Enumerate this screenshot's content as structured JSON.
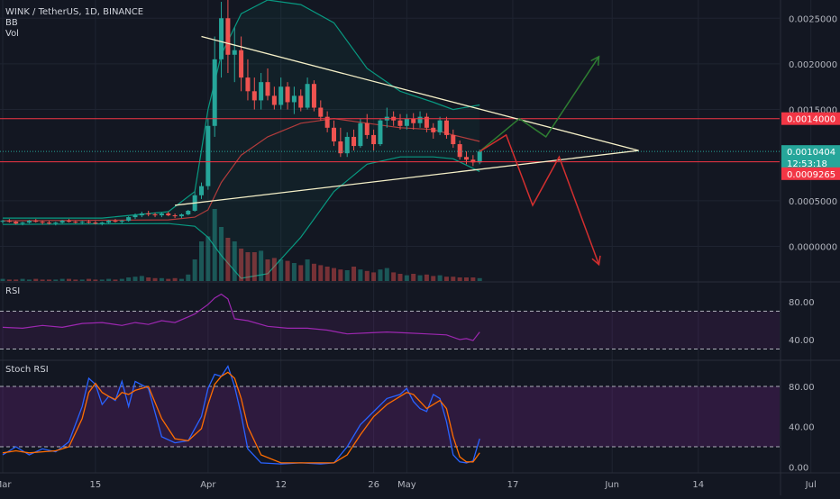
{
  "header": {
    "symbol_line": "WINK / TetherUS, 1D, BINANCE",
    "indicators": [
      "BB",
      "Vol"
    ]
  },
  "panes": {
    "rsi_label": "RSI",
    "stoch_label": "Stoch RSI"
  },
  "price_axis": {
    "ticks": [
      "0.0025000",
      "0.0020000",
      "0.0015000",
      "0.0005000",
      "0.0000000"
    ],
    "tick_values": [
      0.0025,
      0.002,
      0.0015,
      0.0005,
      0.0
    ],
    "tag_resistance": "0.0014000",
    "tag_current": "0.0010404",
    "tag_countdown": "12:53:18",
    "tag_support": "0.0009265"
  },
  "rsi_axis": {
    "ticks": [
      "80.00",
      "40.00"
    ],
    "tick_values": [
      80,
      40
    ]
  },
  "stoch_axis": {
    "ticks": [
      "80.00",
      "40.00",
      "0.00"
    ],
    "tick_values": [
      80,
      40,
      0
    ]
  },
  "time_axis": {
    "labels": [
      "Mar",
      "15",
      "Apr",
      "12",
      "26",
      "May",
      "17",
      "Jun",
      "14",
      "Jul"
    ],
    "label_day_index": [
      0,
      14,
      31,
      42,
      56,
      61,
      77,
      92,
      105,
      122
    ]
  },
  "colors": {
    "background": "#131722",
    "up": "#26a69a",
    "down": "#ef5350",
    "bb_band": "#089981",
    "bb_mid": "#b23c3c",
    "rsi_line": "#9c27b0",
    "stoch_k": "#2962ff",
    "stoch_d": "#ff6d00",
    "trendline": "#f5f0c8",
    "resistance": "#f23645",
    "arrow_up": "#2e7d32",
    "arrow_down": "#d32f2f"
  },
  "chart_data": {
    "type": "candlestick",
    "title": "WINK / TetherUS, 1D, BINANCE",
    "first_day": "Mar 1",
    "price_ylim": [
      -0.00038,
      0.0027
    ],
    "ohlc": [
      [
        0.00027,
        0.00029,
        0.00025,
        0.00028
      ],
      [
        0.00028,
        0.0003,
        0.00026,
        0.00027
      ],
      [
        0.00027,
        0.00028,
        0.00024,
        0.00025
      ],
      [
        0.00025,
        0.00027,
        0.00023,
        0.00026
      ],
      [
        0.00026,
        0.00029,
        0.00025,
        0.00028
      ],
      [
        0.00028,
        0.0003,
        0.00026,
        0.00027
      ],
      [
        0.00027,
        0.00028,
        0.00024,
        0.00026
      ],
      [
        0.00026,
        0.00028,
        0.00024,
        0.00025
      ],
      [
        0.00025,
        0.00027,
        0.00023,
        0.00026
      ],
      [
        0.00026,
        0.00029,
        0.00025,
        0.00028
      ],
      [
        0.00028,
        0.0003,
        0.00026,
        0.00027
      ],
      [
        0.00027,
        0.00028,
        0.00025,
        0.00026
      ],
      [
        0.00026,
        0.00028,
        0.00024,
        0.00027
      ],
      [
        0.00027,
        0.00029,
        0.00025,
        0.00026
      ],
      [
        0.00026,
        0.00028,
        0.00024,
        0.00025
      ],
      [
        0.00025,
        0.00027,
        0.00023,
        0.00026
      ],
      [
        0.00026,
        0.00029,
        0.00025,
        0.00028
      ],
      [
        0.00028,
        0.0003,
        0.00026,
        0.00027
      ],
      [
        0.00027,
        0.00029,
        0.00025,
        0.00028
      ],
      [
        0.00028,
        0.00033,
        0.00027,
        0.00032
      ],
      [
        0.00032,
        0.00036,
        0.0003,
        0.00034
      ],
      [
        0.00034,
        0.00038,
        0.00032,
        0.00036
      ],
      [
        0.00036,
        0.00039,
        0.00033,
        0.00035
      ],
      [
        0.00035,
        0.00037,
        0.00032,
        0.00034
      ],
      [
        0.00034,
        0.00037,
        0.00032,
        0.00036
      ],
      [
        0.00036,
        0.00038,
        0.00033,
        0.00034
      ],
      [
        0.00034,
        0.00036,
        0.00031,
        0.00033
      ],
      [
        0.00033,
        0.00036,
        0.00031,
        0.00035
      ],
      [
        0.00035,
        0.0004,
        0.00034,
        0.00039
      ],
      [
        0.00039,
        0.0006,
        0.00038,
        0.00056
      ],
      [
        0.00056,
        0.0007,
        0.00052,
        0.00066
      ],
      [
        0.00066,
        0.0014,
        0.00062,
        0.00132
      ],
      [
        0.00132,
        0.0023,
        0.0012,
        0.00205
      ],
      [
        0.00205,
        0.00268,
        0.00185,
        0.0025
      ],
      [
        0.0025,
        0.0027,
        0.0019,
        0.0021
      ],
      [
        0.0021,
        0.0024,
        0.0018,
        0.00215
      ],
      [
        0.00215,
        0.0023,
        0.0017,
        0.00185
      ],
      [
        0.00185,
        0.00205,
        0.0016,
        0.0017
      ],
      [
        0.0017,
        0.00185,
        0.0015,
        0.0016
      ],
      [
        0.0016,
        0.0019,
        0.0015,
        0.0018
      ],
      [
        0.0018,
        0.00195,
        0.0016,
        0.00165
      ],
      [
        0.00165,
        0.00175,
        0.0015,
        0.00155
      ],
      [
        0.00155,
        0.00185,
        0.0015,
        0.00175
      ],
      [
        0.00175,
        0.0018,
        0.0015,
        0.00158
      ],
      [
        0.00158,
        0.00175,
        0.00145,
        0.00165
      ],
      [
        0.00165,
        0.00172,
        0.00148,
        0.00152
      ],
      [
        0.00152,
        0.00185,
        0.0015,
        0.00178
      ],
      [
        0.00178,
        0.00182,
        0.00148,
        0.00152
      ],
      [
        0.00152,
        0.0016,
        0.00138,
        0.00142
      ],
      [
        0.00142,
        0.00148,
        0.00125,
        0.0013
      ],
      [
        0.0013,
        0.00138,
        0.0011,
        0.00115
      ],
      [
        0.00115,
        0.0013,
        0.00098,
        0.00102
      ],
      [
        0.00102,
        0.00125,
        0.00098,
        0.0012
      ],
      [
        0.0012,
        0.00128,
        0.00105,
        0.0011
      ],
      [
        0.0011,
        0.0014,
        0.00108,
        0.00135
      ],
      [
        0.00135,
        0.00145,
        0.00118,
        0.00122
      ],
      [
        0.00122,
        0.00128,
        0.00105,
        0.00112
      ],
      [
        0.00112,
        0.0014,
        0.0011,
        0.00138
      ],
      [
        0.00138,
        0.00152,
        0.0013,
        0.00142
      ],
      [
        0.00142,
        0.00148,
        0.00132,
        0.00138
      ],
      [
        0.00138,
        0.00145,
        0.00128,
        0.00132
      ],
      [
        0.00132,
        0.00145,
        0.00128,
        0.0014
      ],
      [
        0.0014,
        0.00146,
        0.00128,
        0.00135
      ],
      [
        0.00135,
        0.00148,
        0.0013,
        0.00142
      ],
      [
        0.00142,
        0.00146,
        0.00125,
        0.0013
      ],
      [
        0.0013,
        0.00135,
        0.00118,
        0.00125
      ],
      [
        0.00125,
        0.00142,
        0.00122,
        0.00138
      ],
      [
        0.00138,
        0.00142,
        0.00118,
        0.00122
      ],
      [
        0.00122,
        0.00128,
        0.00108,
        0.00112
      ],
      [
        0.00112,
        0.00116,
        0.00095,
        0.00098
      ],
      [
        0.00098,
        0.00104,
        0.0009,
        0.00095
      ],
      [
        0.00095,
        0.001,
        0.00088,
        0.00092
      ],
      [
        0.00092,
        0.00106,
        0.0009,
        0.00104
      ]
    ],
    "volume": [
      3,
      2,
      2,
      3,
      2,
      3,
      2,
      2,
      2,
      3,
      3,
      2,
      2,
      3,
      2,
      2,
      3,
      2,
      3,
      5,
      6,
      7,
      5,
      4,
      4,
      3,
      4,
      3,
      9,
      30,
      55,
      62,
      100,
      75,
      60,
      55,
      45,
      40,
      40,
      42,
      30,
      32,
      30,
      28,
      25,
      22,
      30,
      24,
      22,
      20,
      18,
      16,
      15,
      20,
      16,
      14,
      12,
      16,
      18,
      12,
      10,
      8,
      10,
      8,
      9,
      7,
      8,
      6,
      6,
      5,
      5,
      5,
      4
    ],
    "bollinger": {
      "upper": [
        [
          0,
          0.00031
        ],
        [
          15,
          0.00031
        ],
        [
          25,
          0.00038
        ],
        [
          29,
          0.0006
        ],
        [
          31,
          0.0015
        ],
        [
          33,
          0.0021
        ],
        [
          36,
          0.00255
        ],
        [
          40,
          0.0027
        ],
        [
          45,
          0.00265
        ],
        [
          50,
          0.00245
        ],
        [
          55,
          0.00195
        ],
        [
          60,
          0.0017
        ],
        [
          65,
          0.00158
        ],
        [
          68,
          0.0015
        ],
        [
          72,
          0.00155
        ]
      ],
      "middle": [
        [
          0,
          0.00028
        ],
        [
          25,
          0.00029
        ],
        [
          29,
          0.00032
        ],
        [
          31,
          0.0004
        ],
        [
          33,
          0.0007
        ],
        [
          36,
          0.001
        ],
        [
          40,
          0.0012
        ],
        [
          45,
          0.00135
        ],
        [
          50,
          0.0014
        ],
        [
          55,
          0.00135
        ],
        [
          60,
          0.0013
        ],
        [
          65,
          0.00128
        ],
        [
          68,
          0.00122
        ],
        [
          72,
          0.00115
        ]
      ],
      "lower": [
        [
          0,
          0.00024
        ],
        [
          25,
          0.00025
        ],
        [
          29,
          0.00022
        ],
        [
          31,
          0.0001
        ],
        [
          33,
          -0.0001
        ],
        [
          36,
          -0.00035
        ],
        [
          40,
          -0.0003
        ],
        [
          45,
          0.0001
        ],
        [
          50,
          0.0006
        ],
        [
          55,
          0.0009
        ],
        [
          60,
          0.00098
        ],
        [
          65,
          0.00098
        ],
        [
          68,
          0.00096
        ],
        [
          72,
          0.00082
        ]
      ]
    },
    "rsi": {
      "ylim": [
        20,
        100
      ],
      "bands": [
        70,
        30
      ],
      "points": [
        [
          0,
          53
        ],
        [
          3,
          52
        ],
        [
          6,
          55
        ],
        [
          9,
          53
        ],
        [
          12,
          57
        ],
        [
          15,
          58
        ],
        [
          18,
          55
        ],
        [
          20,
          58
        ],
        [
          22,
          56
        ],
        [
          24,
          60
        ],
        [
          26,
          58
        ],
        [
          28,
          64
        ],
        [
          29,
          67
        ],
        [
          31,
          77
        ],
        [
          32,
          84
        ],
        [
          33,
          88
        ],
        [
          34,
          83
        ],
        [
          35,
          62
        ],
        [
          37,
          60
        ],
        [
          40,
          54
        ],
        [
          43,
          52
        ],
        [
          46,
          52
        ],
        [
          49,
          50
        ],
        [
          52,
          46
        ],
        [
          55,
          47
        ],
        [
          58,
          48
        ],
        [
          61,
          47
        ],
        [
          64,
          46
        ],
        [
          67,
          45
        ],
        [
          69,
          40
        ],
        [
          70,
          41
        ],
        [
          71,
          39
        ],
        [
          72,
          48
        ]
      ]
    },
    "stoch_rsi": {
      "ylim": [
        -5,
        105
      ],
      "bands": [
        80,
        20
      ],
      "k": [
        [
          0,
          12
        ],
        [
          2,
          20
        ],
        [
          4,
          12
        ],
        [
          6,
          18
        ],
        [
          8,
          15
        ],
        [
          10,
          25
        ],
        [
          12,
          60
        ],
        [
          13,
          88
        ],
        [
          14,
          82
        ],
        [
          15,
          62
        ],
        [
          16,
          70
        ],
        [
          17,
          66
        ],
        [
          18,
          85
        ],
        [
          19,
          60
        ],
        [
          20,
          85
        ],
        [
          22,
          78
        ],
        [
          24,
          30
        ],
        [
          26,
          24
        ],
        [
          28,
          26
        ],
        [
          30,
          50
        ],
        [
          31,
          78
        ],
        [
          32,
          92
        ],
        [
          33,
          90
        ],
        [
          34,
          100
        ],
        [
          35,
          80
        ],
        [
          36,
          52
        ],
        [
          37,
          18
        ],
        [
          39,
          4
        ],
        [
          42,
          3
        ],
        [
          45,
          4
        ],
        [
          48,
          3
        ],
        [
          50,
          4
        ],
        [
          52,
          20
        ],
        [
          54,
          42
        ],
        [
          56,
          55
        ],
        [
          58,
          68
        ],
        [
          60,
          72
        ],
        [
          61,
          78
        ],
        [
          62,
          65
        ],
        [
          63,
          58
        ],
        [
          64,
          55
        ],
        [
          65,
          72
        ],
        [
          66,
          68
        ],
        [
          67,
          45
        ],
        [
          68,
          12
        ],
        [
          69,
          5
        ],
        [
          70,
          4
        ],
        [
          71,
          6
        ],
        [
          72,
          28
        ]
      ],
      "d": [
        [
          0,
          14
        ],
        [
          2,
          16
        ],
        [
          4,
          14
        ],
        [
          6,
          15
        ],
        [
          8,
          16
        ],
        [
          10,
          20
        ],
        [
          12,
          48
        ],
        [
          13,
          74
        ],
        [
          14,
          83
        ],
        [
          15,
          74
        ],
        [
          16,
          70
        ],
        [
          17,
          67
        ],
        [
          18,
          74
        ],
        [
          19,
          72
        ],
        [
          20,
          76
        ],
        [
          22,
          80
        ],
        [
          24,
          48
        ],
        [
          26,
          28
        ],
        [
          28,
          26
        ],
        [
          30,
          38
        ],
        [
          31,
          62
        ],
        [
          32,
          82
        ],
        [
          33,
          90
        ],
        [
          34,
          94
        ],
        [
          35,
          88
        ],
        [
          36,
          68
        ],
        [
          37,
          40
        ],
        [
          39,
          12
        ],
        [
          42,
          4
        ],
        [
          45,
          4
        ],
        [
          48,
          4
        ],
        [
          50,
          4
        ],
        [
          52,
          12
        ],
        [
          54,
          32
        ],
        [
          56,
          50
        ],
        [
          58,
          62
        ],
        [
          60,
          70
        ],
        [
          61,
          74
        ],
        [
          62,
          72
        ],
        [
          63,
          65
        ],
        [
          64,
          58
        ],
        [
          65,
          62
        ],
        [
          66,
          66
        ],
        [
          67,
          58
        ],
        [
          68,
          30
        ],
        [
          69,
          10
        ],
        [
          70,
          5
        ],
        [
          71,
          5
        ],
        [
          72,
          14
        ]
      ]
    },
    "drawings": {
      "resistance_level": 0.0014,
      "support_level": 0.0009265,
      "upper_trendline": [
        [
          30,
          0.0023
        ],
        [
          96,
          0.00105
        ]
      ],
      "lower_trendline": [
        [
          26,
          0.00045
        ],
        [
          96,
          0.00105
        ]
      ],
      "bullish_path": [
        [
          72,
          0.00104
        ],
        [
          78,
          0.0014
        ],
        [
          82,
          0.0012
        ],
        [
          90,
          0.00208
        ]
      ],
      "bearish_path": [
        [
          72,
          0.00104
        ],
        [
          76,
          0.00122
        ],
        [
          80,
          0.00045
        ],
        [
          84,
          0.00098
        ],
        [
          90,
          -0.0002
        ]
      ]
    }
  }
}
